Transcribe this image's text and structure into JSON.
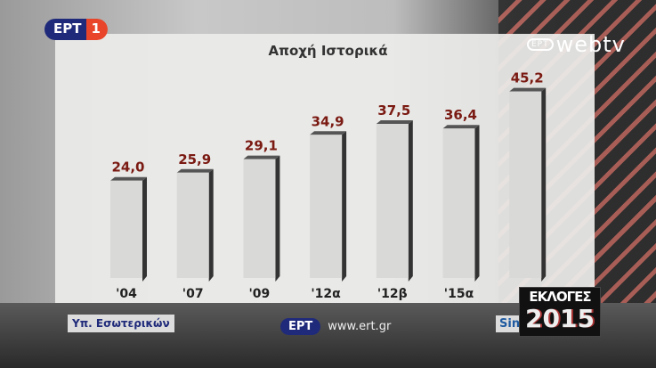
{
  "channel_logo": {
    "text": "ΕΡΤ",
    "number": "1"
  },
  "webtv_logo": {
    "badge": "ΕΡΤ",
    "text": "webtv"
  },
  "chart_data": {
    "type": "bar",
    "title": "Αποχή Ιστορικά",
    "categories": [
      "'04",
      "'07",
      "'09",
      "'12α",
      "'12β",
      "'15α",
      "'"
    ],
    "values": [
      24.0,
      25.9,
      29.1,
      34.9,
      37.5,
      36.4,
      45.2
    ],
    "value_labels": [
      "24,0",
      "25,9",
      "29,1",
      "34,9",
      "37,5",
      "36,4",
      "45,2"
    ],
    "ylim": [
      0,
      50
    ],
    "bar_color": "#d9d9d7",
    "label_color": "#7a1a12",
    "grid": false
  },
  "footer": {
    "source": "Υπ. Εσωτερικών",
    "ert_logo": "ΕΡΤ",
    "url": "www.ert.gr",
    "cutoff_text": "Sin"
  },
  "elections_badge": {
    "title": "ΕΚΛΟΓΕΣ",
    "year": "2015"
  }
}
